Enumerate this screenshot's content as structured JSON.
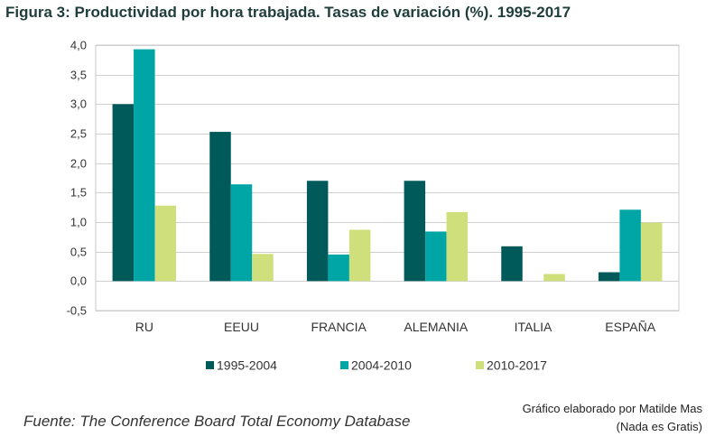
{
  "title": "Figura 3: Productividad por hora trabajada. Tasas de variación (%). 1995-2017",
  "chart_data": {
    "type": "bar",
    "categories": [
      "RU",
      "EEUU",
      "FRANCIA",
      "ALEMANIA",
      "ITALIA",
      "ESPAÑA"
    ],
    "series": [
      {
        "name": "1995-2004",
        "color": "#005a5a",
        "values": [
          3.0,
          2.53,
          1.7,
          1.7,
          0.59,
          0.15
        ]
      },
      {
        "name": "2004-2010",
        "color": "#00a6a6",
        "values": [
          3.93,
          1.64,
          0.45,
          0.84,
          0.0,
          1.21
        ]
      },
      {
        "name": "2010-2017",
        "color": "#cfdf7c",
        "values": [
          1.28,
          0.46,
          0.87,
          1.17,
          0.12,
          0.99
        ]
      }
    ],
    "ylim": [
      -0.5,
      4.0
    ],
    "yticks": [
      -0.5,
      0.0,
      0.5,
      1.0,
      1.5,
      2.0,
      2.5,
      3.0,
      3.5,
      4.0
    ],
    "ytick_labels": [
      "-0,5",
      "0,0",
      "0,5",
      "1,0",
      "1,5",
      "2,0",
      "2,5",
      "3,0",
      "3,5",
      "4,0"
    ],
    "grid": true,
    "legend": "bottom",
    "xlabel": "",
    "ylabel": ""
  },
  "source": "Fuente: The Conference Board Total Economy Database",
  "credit": {
    "line1": "Gráfico elaborado por Matilde Mas",
    "line2": "(Nada es Gratis)"
  }
}
